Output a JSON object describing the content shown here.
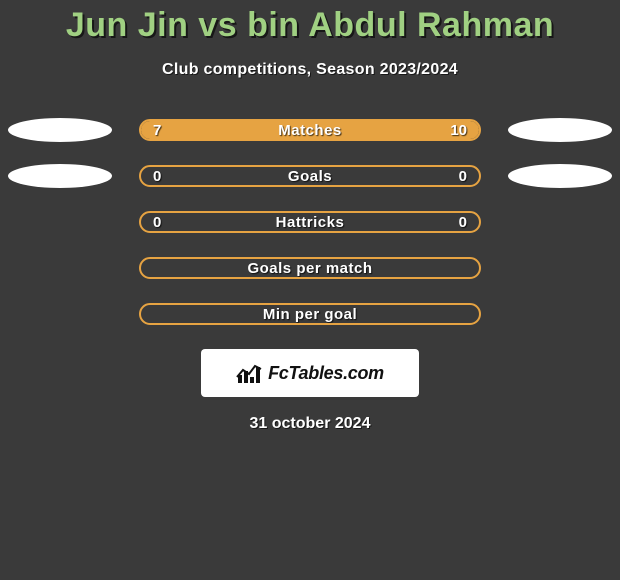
{
  "title": "Jun Jin vs bin Abdul Rahman",
  "subtitle": "Club competitions, Season 2023/2024",
  "date": "31 october 2024",
  "logo_text": "FcTables.com",
  "colors": {
    "background": "#3a3a3a",
    "title": "#a0d082",
    "bar_border": "#e6a342",
    "bar_fill": "#e6a342",
    "text": "#ffffff",
    "blob": "#ffffff"
  },
  "rows": [
    {
      "label": "Matches",
      "left": "7",
      "right": "10",
      "left_pct": 41,
      "right_pct": 59,
      "blob_left": true,
      "blob_right": true
    },
    {
      "label": "Goals",
      "left": "0",
      "right": "0",
      "left_pct": 0,
      "right_pct": 0,
      "blob_left": true,
      "blob_right": true
    },
    {
      "label": "Hattricks",
      "left": "0",
      "right": "0",
      "left_pct": 0,
      "right_pct": 0,
      "blob_left": false,
      "blob_right": false
    },
    {
      "label": "Goals per match",
      "left": "",
      "right": "",
      "left_pct": 0,
      "right_pct": 0,
      "blob_left": false,
      "blob_right": false
    },
    {
      "label": "Min per goal",
      "left": "",
      "right": "",
      "left_pct": 0,
      "right_pct": 0,
      "blob_left": false,
      "blob_right": false
    }
  ]
}
